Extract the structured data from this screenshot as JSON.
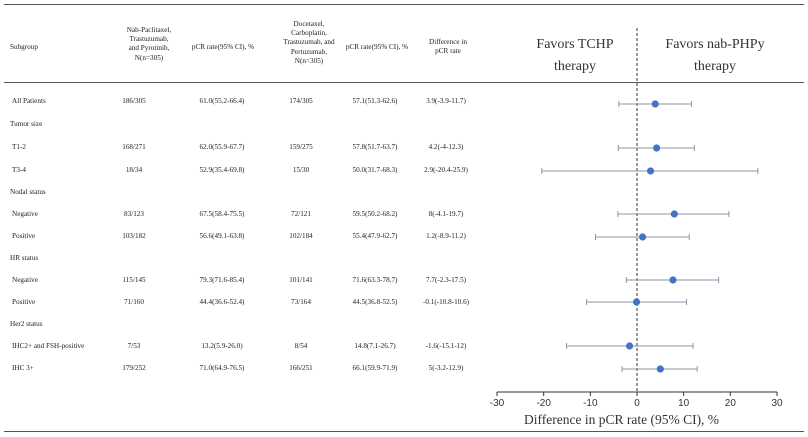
{
  "table": {
    "headers": {
      "subgroup": "Subgroup",
      "arm1": [
        "Nab-Paclitaxel,",
        "Trastuzumab,",
        "and Pyrotinib,",
        "N(n=305)"
      ],
      "pcr1": "pCR rate(95% CI), %",
      "arm2": [
        "Docetaxel,",
        "Carboplatin,",
        "Trastuzumab, and",
        "Pertuzumab,",
        "N(n=305)"
      ],
      "pcr2": "pCR rate(95% CI), %",
      "diff": [
        "Difference in",
        "pCR rate"
      ]
    },
    "rows": [
      {
        "label": "All Patients",
        "n1": "186/305",
        "p1": "61.0(55.2-66.4)",
        "n2": "174/305",
        "p2": "57.1(51.3-62.6)",
        "d": "3.9(-3.9-11.7)"
      },
      {
        "label": "Tumor size",
        "group": true
      },
      {
        "label": "T1-2",
        "n1": "168/271",
        "p1": "62.0(55.9-67.7)",
        "n2": "159/275",
        "p2": "57.8(51.7-63.7)",
        "d": "4.2(-4-12.3)"
      },
      {
        "label": "T3-4",
        "n1": "18/34",
        "p1": "52.9(35.4-69.8)",
        "n2": "15/30",
        "p2": "50.0(31.7-68.3)",
        "d": "2.9(-20.4-25.9)"
      },
      {
        "label": "Nodal status",
        "group": true
      },
      {
        "label": "Negative",
        "n1": "83/123",
        "p1": "67.5(58.4-75.5)",
        "n2": "72/121",
        "p2": "59.5(50.2-68.2)",
        "d": "8(-4.1-19.7)"
      },
      {
        "label": "Positive",
        "n1": "103/182",
        "p1": "56.6(49.1-63.8)",
        "n2": "102/184",
        "p2": "55.4(47.9-62.7)",
        "d": "1.2(-8.9-11.2)"
      },
      {
        "label": "HR status",
        "group": true
      },
      {
        "label": "Negative",
        "n1": "115/145",
        "p1": "79.3(71.6-85.4)",
        "n2": "101/141",
        "p2": "71.6(63.3-78.7)",
        "d": "7.7(-2.3-17.5)"
      },
      {
        "label": "Positive",
        "n1": "71/160",
        "p1": "44.4(36.6-52.4)",
        "n2": "73/164",
        "p2": "44.5(36.8-52.5)",
        "d": "-0.1(-10.8-10.6)"
      },
      {
        "label": "Her2 status",
        "group": true
      },
      {
        "label": "IHC2+ and FSH-positive",
        "n1": "7/53",
        "p1": "13.2(5.9-26.0)",
        "n2": "8/54",
        "p2": "14.8(7.1-26.7)",
        "d": "-1.6(-15.1-12)"
      },
      {
        "label": "IHC 3+",
        "n1": "179/252",
        "p1": "71.0(64.9-76.5)",
        "n2": "166/251",
        "p2": "66.1(59.9-71.9)",
        "d": "5(-3.2-12.9)"
      }
    ]
  },
  "chart_data": {
    "type": "scatter",
    "title": "",
    "left_annotation": [
      "Favors TCHP",
      "therapy"
    ],
    "right_annotation": [
      "Favors nab-PHPy",
      "therapy"
    ],
    "xlabel": "Difference in pCR rate (95% CI), %",
    "xlim": [
      -30,
      30
    ],
    "xticks": [
      -30,
      -20,
      -10,
      0,
      10,
      20,
      30
    ],
    "reference_line": 0,
    "points": [
      {
        "label": "All Patients",
        "x": 3.9,
        "lo": -3.9,
        "hi": 11.7
      },
      {
        "label": "T1-2",
        "x": 4.2,
        "lo": -4,
        "hi": 12.3
      },
      {
        "label": "T3-4",
        "x": 2.9,
        "lo": -20.4,
        "hi": 25.9
      },
      {
        "label": "Nodal Negative",
        "x": 8,
        "lo": -4.1,
        "hi": 19.7
      },
      {
        "label": "Nodal Positive",
        "x": 1.2,
        "lo": -8.9,
        "hi": 11.2
      },
      {
        "label": "HR Negative",
        "x": 7.7,
        "lo": -2.3,
        "hi": 17.5
      },
      {
        "label": "HR Positive",
        "x": -0.1,
        "lo": -10.8,
        "hi": 10.6
      },
      {
        "label": "IHC2+ and FSH-positive",
        "x": -1.6,
        "lo": -15.1,
        "hi": 12
      },
      {
        "label": "IHC 3+",
        "x": 5,
        "lo": -3.2,
        "hi": 12.9
      }
    ],
    "colors": {
      "marker": "#4472c4",
      "ci_line": "#8a96a8",
      "axis": "#333333",
      "reference": "#333333"
    }
  }
}
